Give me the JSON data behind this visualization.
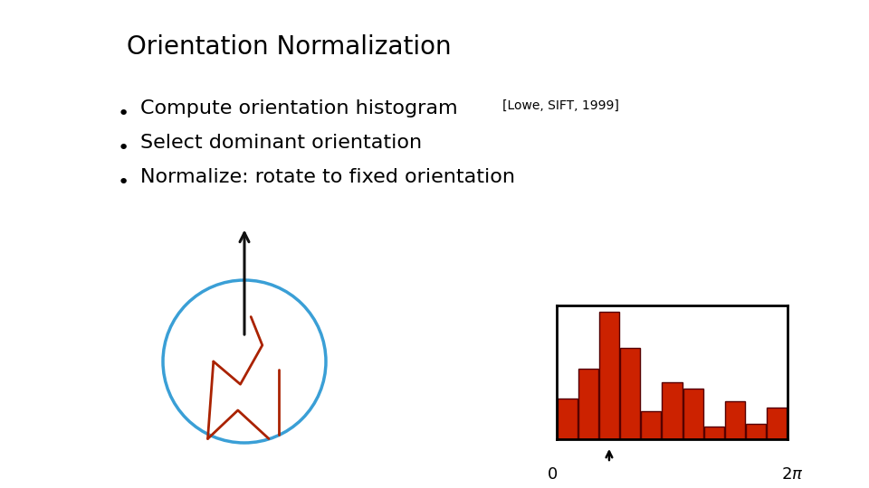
{
  "title": "Orientation Normalization",
  "bullet_points": [
    "Compute orientation histogram",
    "Select dominant orientation",
    "Normalize: rotate to fixed orientation"
  ],
  "citation": "[Lowe, SIFT, 1999]",
  "background_color": "#ffffff",
  "title_fontsize": 20,
  "bullet_fontsize": 16,
  "citation_fontsize": 10,
  "hist_values": [
    0.32,
    0.55,
    1.0,
    0.72,
    0.22,
    0.45,
    0.4,
    0.1,
    0.3,
    0.12,
    0.25
  ],
  "hist_color": "#cc2200",
  "hist_edge_color": "#550000",
  "circle_color": "#3a9fd6",
  "arrow_color": "#111111",
  "shape_color": "#aa2200"
}
